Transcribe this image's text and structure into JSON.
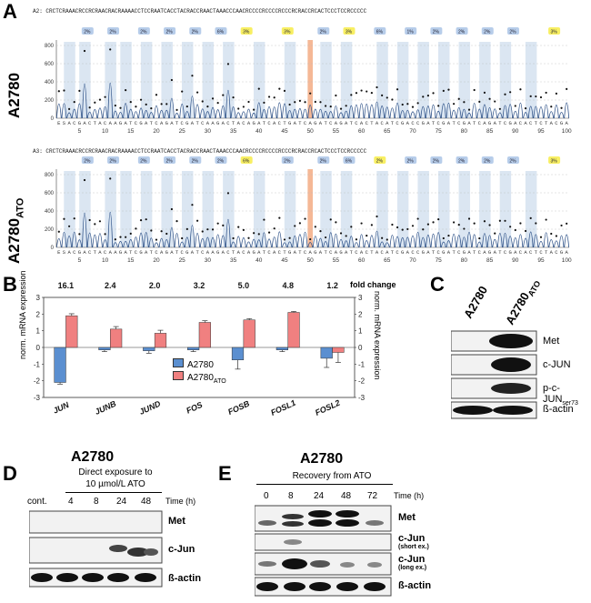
{
  "panel_a": {
    "label": "A",
    "track1": {
      "header": "A2: CRCTCRAAACRCCRCRAACRACRAAAACCTCCRAATCACCTACRACCRAACTAAACCCAACRCCCCRCCCCRCCCRCRACCRCACTCCCTCCRCCCCC",
      "row_label": "A2780",
      "y_ticks": [
        "800",
        "600",
        "400",
        "200",
        "0"
      ],
      "bases": "ESACGACTACAAGATCGATCAGATCGATCAAGACTACAGATCACTGATCAGATCAGATCACTACATCGACCGATCGATCGATCAGATCGACACTCTACGA",
      "x_ticks": [
        "5",
        "10",
        "15",
        "20",
        "25",
        "30",
        "35",
        "40",
        "45",
        "50",
        "55",
        "60",
        "65",
        "70",
        "75",
        "80",
        "85",
        "90",
        "95",
        "100"
      ],
      "badges": [
        "2%",
        "2%",
        "2%",
        "2%",
        "2%",
        "6%",
        "3%",
        "3%",
        "2%",
        "3%",
        "6%",
        "1%",
        "2%",
        "2%",
        "2%",
        "2%",
        "3%"
      ]
    },
    "track2": {
      "header": "A3: CRCTCRAAACRCCRCRAACRACRAAAACCTCCRAATCACCTACRACCRAACTAAACCCAACRCCCCRCCCCRCCCRCRACCRCACTCCCTCCRCCCCC",
      "row_label": "A2780",
      "row_label_sub": "ATO",
      "y_ticks": [
        "800",
        "600",
        "400",
        "200",
        "0"
      ],
      "bases": "ESACGACTACAAGATCGATCAGATCGATCAAGACTACAGATCACTGATCAGATCAGATCACTACATCGACCGATCGATCGATCAGATCGACACTCTACGA",
      "x_ticks": [
        "5",
        "10",
        "15",
        "20",
        "25",
        "30",
        "35",
        "40",
        "45",
        "50",
        "55",
        "60",
        "65",
        "70",
        "75",
        "80",
        "85",
        "90",
        "95",
        "100"
      ],
      "badges": [
        "2%",
        "2%",
        "2%",
        "2%",
        "2%",
        "2%",
        "6%",
        "2%",
        "2%",
        "6%",
        "2%",
        "2%",
        "2%",
        "2%",
        "2%",
        "2%",
        "3%"
      ]
    }
  },
  "panel_b": {
    "label": "B",
    "fold_change_label": "fold change",
    "y_label_left": "norm. mRNA expression",
    "y_label_right": "norm. mRNA expression",
    "y_ticks": [
      "3",
      "2",
      "1",
      "0",
      "-1",
      "-2",
      "-3"
    ],
    "legend": {
      "s1": "A2780",
      "s2": "A2780",
      "s2_sub": "ATO"
    },
    "colors": {
      "a2780": "#5b8fd0",
      "ato": "#f08080"
    }
  },
  "chart_data": {
    "type": "bar",
    "categories": [
      "JUN",
      "JUNB",
      "JUND",
      "FOS",
      "FOSB",
      "FOSL1",
      "FOSL2"
    ],
    "fold_change": [
      "16.1",
      "2.4",
      "2.0",
      "3.2",
      "5.0",
      "4.8",
      "1.2"
    ],
    "ylim": [
      -3,
      3
    ],
    "series": [
      {
        "name": "A2780",
        "values": [
          -2.1,
          -0.15,
          -0.2,
          -0.15,
          -0.75,
          -0.15,
          -0.65
        ],
        "errors": [
          0.1,
          0.1,
          0.15,
          0.1,
          0.55,
          0.1,
          0.55
        ]
      },
      {
        "name": "A2780ATO",
        "values": [
          1.9,
          1.1,
          0.85,
          1.5,
          1.65,
          2.1,
          -0.3
        ],
        "errors": [
          0.12,
          0.15,
          0.18,
          0.1,
          0.08,
          0.06,
          0.6
        ]
      }
    ]
  },
  "panel_c": {
    "label": "C",
    "col1": "A2780",
    "col2": "A2780",
    "col2_sub": "ATO",
    "rows": [
      "Met",
      "c-JUN",
      "p-c-JUN",
      "ß-actin"
    ],
    "row3_sub": "ser73"
  },
  "panel_d": {
    "label": "D",
    "title": "A2780",
    "subtitle1": "Direct exposure to",
    "subtitle2": "10 µmol/L ATO",
    "lanes": [
      "cont.",
      "4",
      "8",
      "24",
      "48"
    ],
    "time_label": "Time (h)",
    "rows": [
      "Met",
      "c-Jun",
      "ß-actin"
    ]
  },
  "panel_e": {
    "label": "E",
    "title": "A2780",
    "subtitle": "Recovery from ATO",
    "lanes": [
      "0",
      "8",
      "24",
      "48",
      "72"
    ],
    "time_label": "Time (h)",
    "rows": [
      "Met",
      "c-Jun",
      "(short ex.)",
      "c-Jun",
      "(long ex.)",
      "ß-actin"
    ]
  }
}
